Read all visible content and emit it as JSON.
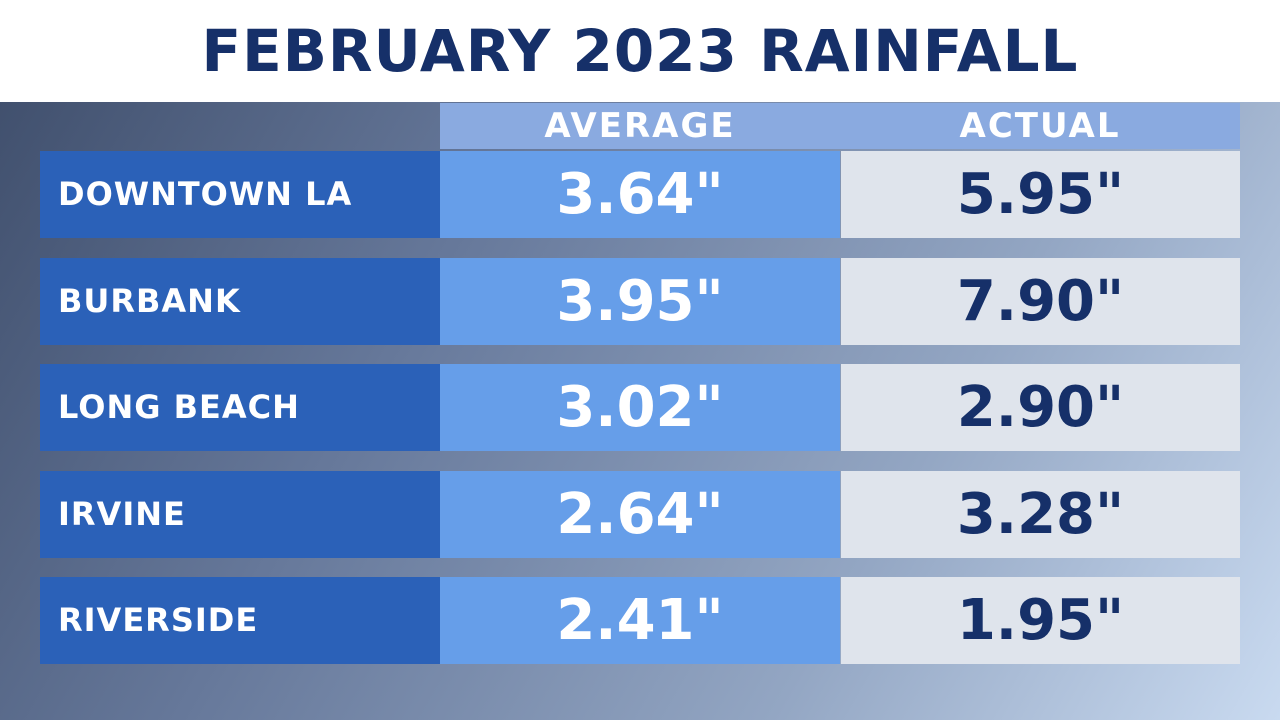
{
  "title": "FEBRUARY 2023 RAINFALL",
  "colors": {
    "title_text": "#163069",
    "label_bg": "#2b61b8",
    "average_bg": "#669ee9",
    "actual_bg": "#dfe4ec",
    "header_bg": "#8aaae0"
  },
  "chart_data": {
    "type": "table",
    "title": "FEBRUARY 2023 RAINFALL",
    "columns": [
      "AVERAGE",
      "ACTUAL"
    ],
    "rows": [
      {
        "label": "DOWNTOWN LA",
        "average": "3.64\"",
        "actual": "5.95\""
      },
      {
        "label": "BURBANK",
        "average": "3.95\"",
        "actual": "7.90\""
      },
      {
        "label": "LONG BEACH",
        "average": "3.02\"",
        "actual": "2.90\""
      },
      {
        "label": "IRVINE",
        "average": "2.64\"",
        "actual": "3.28\""
      },
      {
        "label": "RIVERSIDE",
        "average": "2.41\"",
        "actual": "1.95\""
      }
    ]
  }
}
